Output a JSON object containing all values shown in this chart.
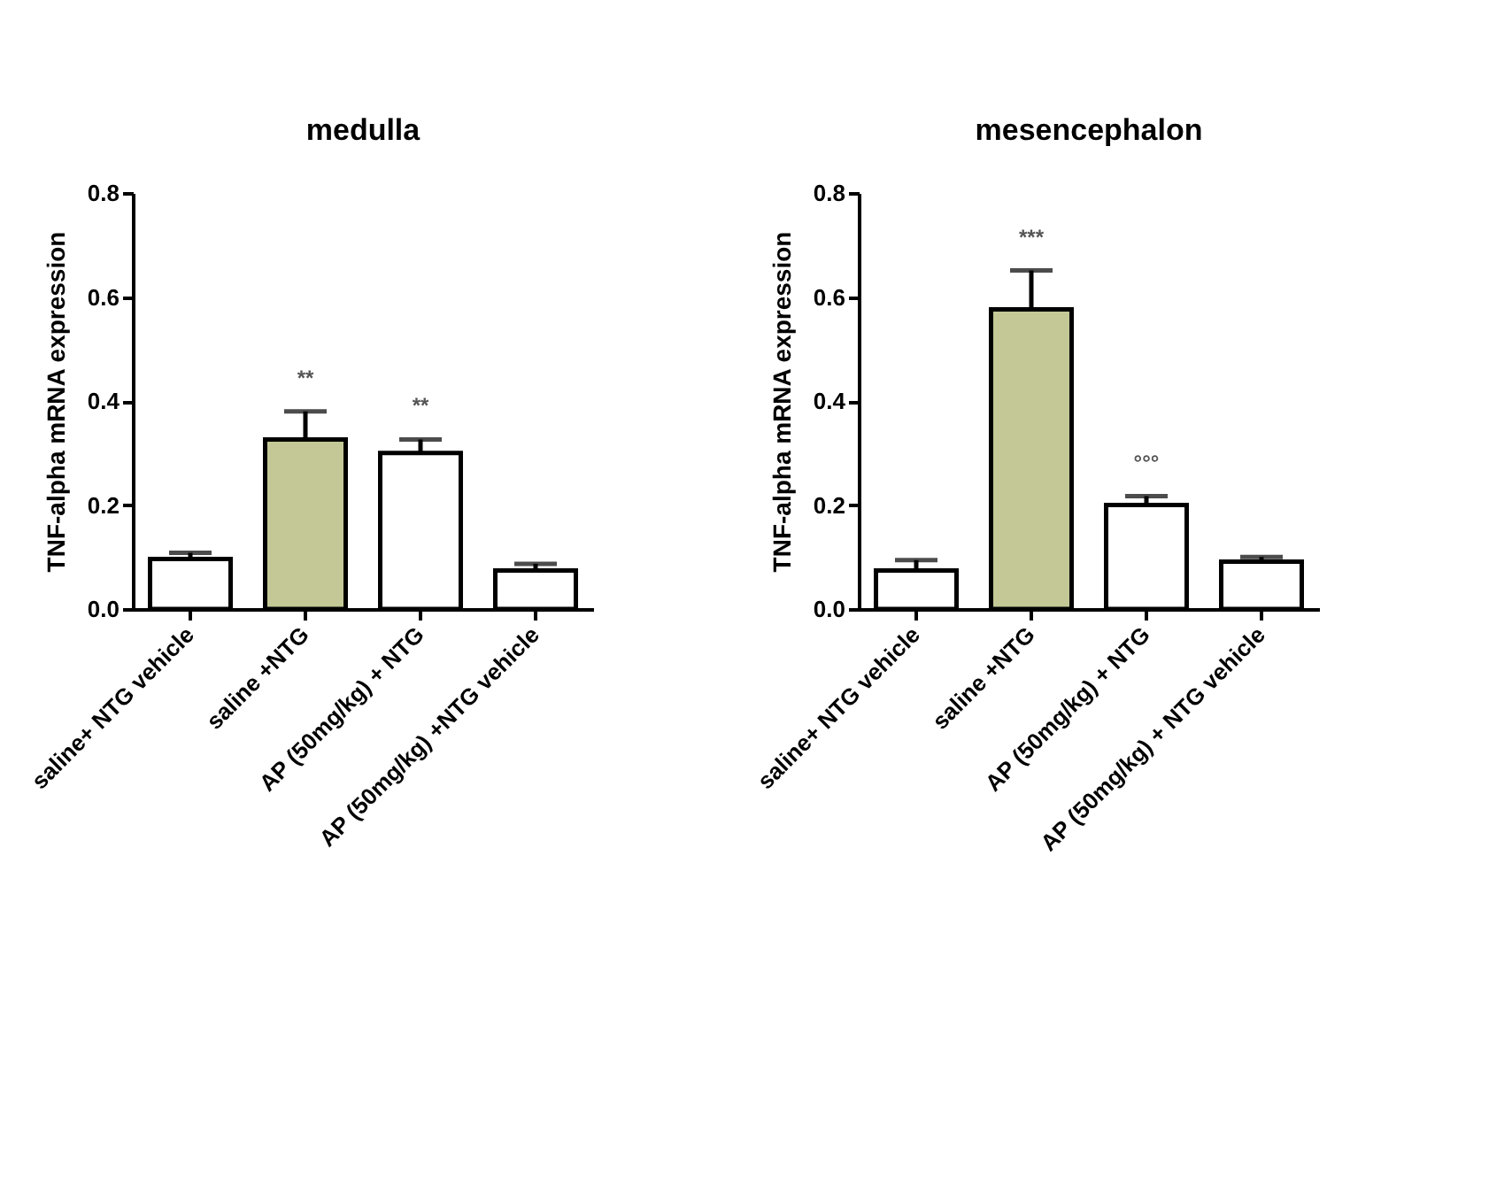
{
  "chart_data": [
    {
      "type": "bar",
      "title": "medulla",
      "ylabel": "TNF-alpha mRNA expression",
      "categories": [
        "saline+ NTG vehicle",
        "saline +NTG",
        "AP (50mg/kg) + NTG",
        "AP (50mg/kg) +NTG vehicle"
      ],
      "values": [
        0.096,
        0.326,
        0.3,
        0.074
      ],
      "colors": [
        "#ffffff",
        "#c4c896",
        "#ffffff",
        "#ffffff"
      ],
      "errors": [
        [
          0.096,
          0.108
        ],
        [
          0.326,
          0.38
        ],
        [
          0.3,
          0.326
        ],
        [
          0.074,
          0.087
        ]
      ],
      "ylim": [
        0,
        0.8
      ],
      "yticks": [
        {
          "value": 0,
          "label": "0.0"
        },
        0.2,
        0.4,
        0.6,
        0.8
      ],
      "annotations": [
        {
          "text": "**",
          "x": "saline +NTG",
          "y": 0.38
        },
        {
          "text": "**",
          "x": "AP (50mg/kg) + NTG",
          "y": 0.326
        }
      ],
      "grid": false
    },
    {
      "type": "bar",
      "title": "mesencephalon",
      "ylabel": "TNF-alpha mRNA expression",
      "categories": [
        "saline+ NTG vehicle",
        "saline +NTG",
        "AP (50mg/kg) + NTG",
        "AP (50mg/kg) + NTG vehicle"
      ],
      "values": [
        0.074,
        0.576,
        0.2,
        0.091
      ],
      "colors": [
        "#ffffff",
        "#c4c896",
        "#ffffff",
        "#ffffff"
      ],
      "errors": [
        [
          0.074,
          0.094
        ],
        [
          0.576,
          0.651
        ],
        [
          0.2,
          0.217
        ],
        [
          0.091,
          0.1
        ]
      ],
      "ylim": [
        0,
        0.8
      ],
      "yticks": [
        {
          "value": 0,
          "label": "0.0"
        },
        0.2,
        0.4,
        0.6,
        0.8
      ],
      "annotations": [
        {
          "text": "***",
          "x": "saline +NTG",
          "y": 0.651
        },
        {
          "text": "°°°",
          "x": "AP (50mg/kg) + NTG",
          "y": 0.217
        }
      ],
      "grid": false
    }
  ]
}
